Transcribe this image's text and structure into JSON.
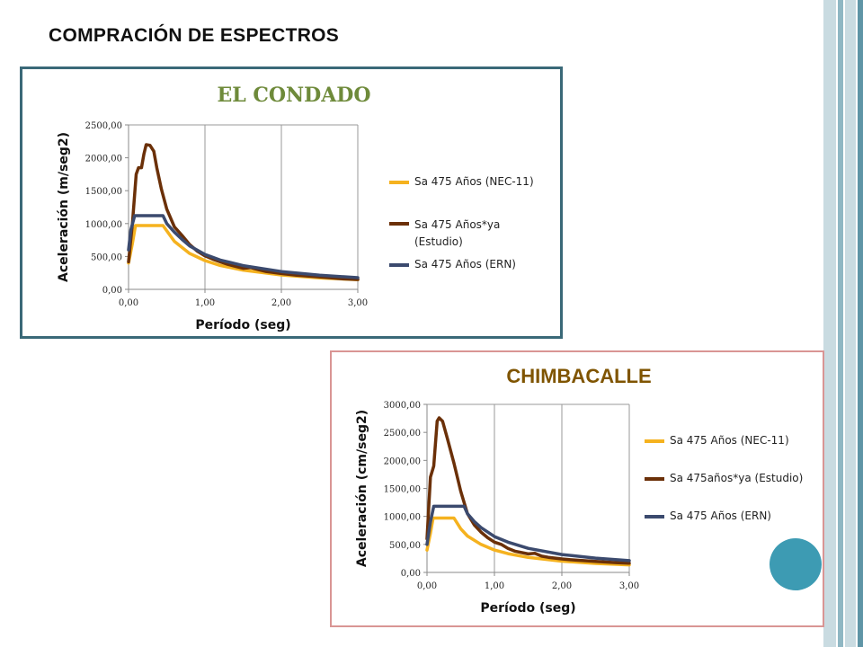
{
  "slide_title": "COMPRACIÓN DE ESPECTROS",
  "colors": {
    "frame_bars": [
      "#c9dbe1",
      "#8fb7c3",
      "#5f95a6"
    ],
    "circle": "#3d9bb3"
  },
  "chart_data": [
    {
      "type": "line",
      "title": "EL CONDADO",
      "xlabel": "Período (seg)",
      "ylabel": "Aceleración (m/seg2)",
      "xlim": [
        0,
        3
      ],
      "ylim": [
        0,
        2500
      ],
      "xticks": [
        0,
        1,
        2,
        3
      ],
      "yticks": [
        0,
        500,
        1000,
        1500,
        2000,
        2500
      ],
      "xtick_labels": [
        "0,00",
        "1,00",
        "2,00",
        "3,00"
      ],
      "ytick_labels": [
        "0,00",
        "500,00",
        "1000,00",
        "1500,00",
        "2000,00",
        "2500,00"
      ],
      "grid": "vertical",
      "legend": "right",
      "series": [
        {
          "name": "Sa 475 Años (NEC-11)",
          "color": "#f5b21f",
          "points": [
            [
              0,
              400
            ],
            [
              0.05,
              700
            ],
            [
              0.09,
              970
            ],
            [
              0.45,
              970
            ],
            [
              0.6,
              730
            ],
            [
              0.8,
              545
            ],
            [
              1.0,
              437
            ],
            [
              1.2,
              364
            ],
            [
              1.5,
              291
            ],
            [
              2.0,
              218
            ],
            [
              2.5,
              175
            ],
            [
              3.0,
              146
            ]
          ]
        },
        {
          "name": "Sa 475 Años*ya (Estudio)",
          "color": "#6b3008",
          "points": [
            [
              0,
              420
            ],
            [
              0.05,
              1000
            ],
            [
              0.1,
              1750
            ],
            [
              0.13,
              1850
            ],
            [
              0.17,
              1850
            ],
            [
              0.2,
              2050
            ],
            [
              0.23,
              2200
            ],
            [
              0.28,
              2190
            ],
            [
              0.33,
              2100
            ],
            [
              0.37,
              1850
            ],
            [
              0.43,
              1520
            ],
            [
              0.5,
              1220
            ],
            [
              0.6,
              950
            ],
            [
              0.7,
              820
            ],
            [
              0.8,
              680
            ],
            [
              0.9,
              580
            ],
            [
              1.0,
              510
            ],
            [
              1.1,
              460
            ],
            [
              1.2,
              420
            ],
            [
              1.3,
              380
            ],
            [
              1.4,
              350
            ],
            [
              1.5,
              320
            ],
            [
              1.6,
              330
            ],
            [
              1.7,
              300
            ],
            [
              1.8,
              270
            ],
            [
              2.0,
              240
            ],
            [
              2.2,
              215
            ],
            [
              2.5,
              190
            ],
            [
              2.8,
              160
            ],
            [
              3.0,
              150
            ]
          ]
        },
        {
          "name": "Sa 475 Años (ERN)",
          "color": "#3b4a6e",
          "points": [
            [
              0,
              600
            ],
            [
              0.03,
              900
            ],
            [
              0.08,
              1120
            ],
            [
              0.45,
              1120
            ],
            [
              0.5,
              1000
            ],
            [
              0.6,
              870
            ],
            [
              0.7,
              760
            ],
            [
              0.8,
              660
            ],
            [
              1.0,
              530
            ],
            [
              1.2,
              445
            ],
            [
              1.5,
              360
            ],
            [
              2.0,
              270
            ],
            [
              2.5,
              215
            ],
            [
              3.0,
              178
            ]
          ]
        }
      ]
    },
    {
      "type": "line",
      "title": "CHIMBACALLE",
      "xlabel": "Período (seg)",
      "ylabel": "Aceleración (cm/seg2)",
      "xlim": [
        0,
        3
      ],
      "ylim": [
        0,
        3000
      ],
      "xticks": [
        0,
        1,
        2,
        3
      ],
      "yticks": [
        0,
        500,
        1000,
        1500,
        2000,
        2500,
        3000
      ],
      "xtick_labels": [
        "0,00",
        "1,00",
        "2,00",
        "3,00"
      ],
      "ytick_labels": [
        "0,00",
        "500,00",
        "1000,00",
        "1500,00",
        "2000,00",
        "2500,00",
        "3000,00"
      ],
      "grid": "vertical",
      "legend": "right",
      "series": [
        {
          "name": "Sa 475 Años (NEC-11)",
          "color": "#f5b21f",
          "points": [
            [
              0,
              400
            ],
            [
              0.05,
              700
            ],
            [
              0.09,
              970
            ],
            [
              0.4,
              970
            ],
            [
              0.5,
              780
            ],
            [
              0.6,
              650
            ],
            [
              0.8,
              500
            ],
            [
              1.0,
              400
            ],
            [
              1.2,
              335
            ],
            [
              1.5,
              268
            ],
            [
              2.0,
              200
            ],
            [
              2.5,
              160
            ],
            [
              3.0,
              134
            ]
          ]
        },
        {
          "name": "Sa 475años*ya (Estudio)",
          "color": "#6b3008",
          "points": [
            [
              0,
              600
            ],
            [
              0.05,
              1700
            ],
            [
              0.1,
              1900
            ],
            [
              0.15,
              2700
            ],
            [
              0.18,
              2760
            ],
            [
              0.23,
              2700
            ],
            [
              0.3,
              2400
            ],
            [
              0.4,
              1950
            ],
            [
              0.5,
              1450
            ],
            [
              0.6,
              1050
            ],
            [
              0.7,
              850
            ],
            [
              0.8,
              720
            ],
            [
              0.9,
              620
            ],
            [
              1.0,
              540
            ],
            [
              1.1,
              500
            ],
            [
              1.2,
              430
            ],
            [
              1.3,
              380
            ],
            [
              1.5,
              330
            ],
            [
              1.6,
              340
            ],
            [
              1.7,
              290
            ],
            [
              1.8,
              270
            ],
            [
              2.0,
              240
            ],
            [
              2.2,
              220
            ],
            [
              2.5,
              195
            ],
            [
              2.8,
              175
            ],
            [
              3.0,
              165
            ]
          ]
        },
        {
          "name": "Sa 475 Años (ERN)",
          "color": "#3b4a6e",
          "points": [
            [
              0,
              500
            ],
            [
              0.05,
              900
            ],
            [
              0.1,
              1180
            ],
            [
              0.55,
              1180
            ],
            [
              0.6,
              1050
            ],
            [
              0.7,
              910
            ],
            [
              0.8,
              800
            ],
            [
              1.0,
              640
            ],
            [
              1.2,
              540
            ],
            [
              1.5,
              430
            ],
            [
              2.0,
              320
            ],
            [
              2.5,
              255
            ],
            [
              3.0,
              210
            ]
          ]
        }
      ]
    }
  ]
}
